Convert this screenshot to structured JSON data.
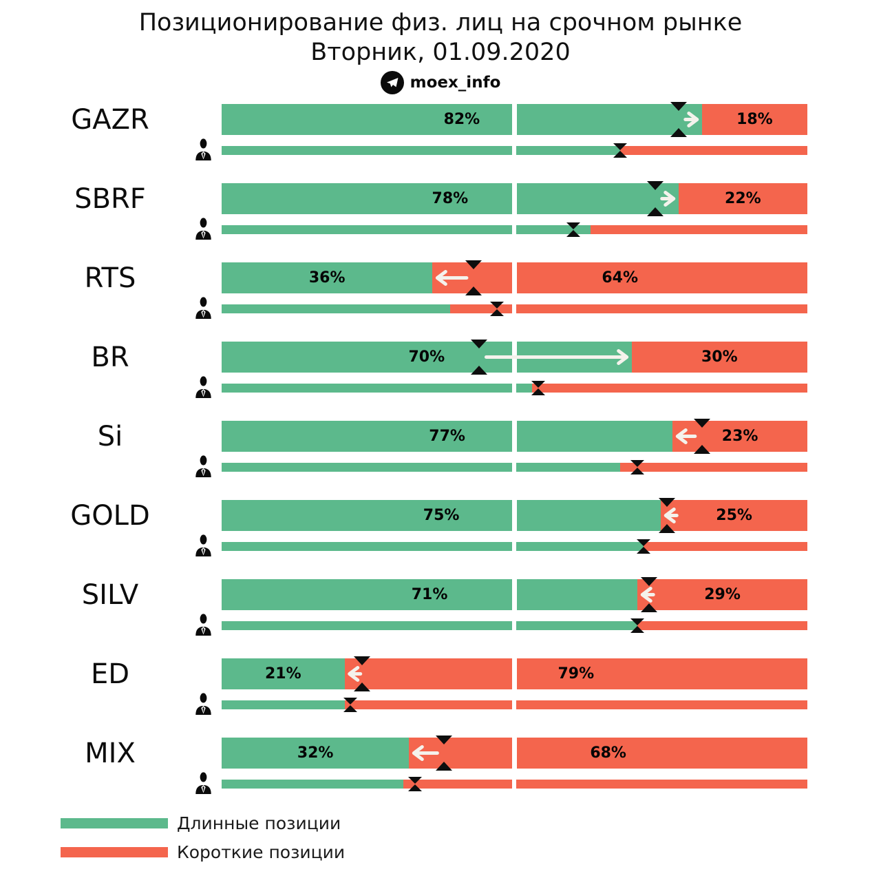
{
  "title": {
    "line1": "Позиционирование физ. лиц на срочном рынке",
    "line2": "Вторник, 01.09.2020"
  },
  "badge": {
    "icon": "telegram-icon",
    "label": "moex_info"
  },
  "colors": {
    "long": "#5cb98c",
    "short": "#f4654d",
    "marker": "#0e0e0e",
    "arrow": "#f4f2ec",
    "divider": "#ffffff",
    "text": "#000000"
  },
  "legend": {
    "items": [
      {
        "key": "long",
        "label": "Длинные позиции"
      },
      {
        "key": "short",
        "label": "Короткие позиции"
      }
    ]
  },
  "chart_data": {
    "type": "bar",
    "subtype": "horizontal-stacked-100pct",
    "unit": "%",
    "categories": [
      "GAZR",
      "SBRF",
      "RTS",
      "BR",
      "Si",
      "GOLD",
      "SILV",
      "ED",
      "MIX"
    ],
    "rows": [
      {
        "ticker": "GAZR",
        "long_pct": 82,
        "short_pct": 18,
        "long_label": "82%",
        "short_label": "18%",
        "prev_long_pct": 78,
        "people_long_pct": 68,
        "people_prev_long_pct": 68
      },
      {
        "ticker": "SBRF",
        "long_pct": 78,
        "short_pct": 22,
        "long_label": "78%",
        "short_label": "22%",
        "prev_long_pct": 74,
        "people_long_pct": 63,
        "people_prev_long_pct": 60
      },
      {
        "ticker": "RTS",
        "long_pct": 36,
        "short_pct": 64,
        "long_label": "36%",
        "short_label": "64%",
        "prev_long_pct": 43,
        "people_long_pct": 39,
        "people_prev_long_pct": 47
      },
      {
        "ticker": "BR",
        "long_pct": 70,
        "short_pct": 30,
        "long_label": "70%",
        "short_label": "30%",
        "prev_long_pct": 44,
        "people_long_pct": 53,
        "people_prev_long_pct": 54
      },
      {
        "ticker": "Si",
        "long_pct": 77,
        "short_pct": 23,
        "long_label": "77%",
        "short_label": "23%",
        "prev_long_pct": 82,
        "people_long_pct": 68,
        "people_prev_long_pct": 71
      },
      {
        "ticker": "GOLD",
        "long_pct": 75,
        "short_pct": 25,
        "long_label": "75%",
        "short_label": "25%",
        "prev_long_pct": 76,
        "people_long_pct": 72,
        "people_prev_long_pct": 72
      },
      {
        "ticker": "SILV",
        "long_pct": 71,
        "short_pct": 29,
        "long_label": "71%",
        "short_label": "29%",
        "prev_long_pct": 73,
        "people_long_pct": 71,
        "people_prev_long_pct": 71
      },
      {
        "ticker": "ED",
        "long_pct": 21,
        "short_pct": 79,
        "long_label": "21%",
        "short_label": "79%",
        "prev_long_pct": 24,
        "people_long_pct": 21,
        "people_prev_long_pct": 22
      },
      {
        "ticker": "MIX",
        "long_pct": 32,
        "short_pct": 68,
        "long_label": "32%",
        "short_label": "68%",
        "prev_long_pct": 38,
        "people_long_pct": 31,
        "people_prev_long_pct": 33
      }
    ]
  }
}
